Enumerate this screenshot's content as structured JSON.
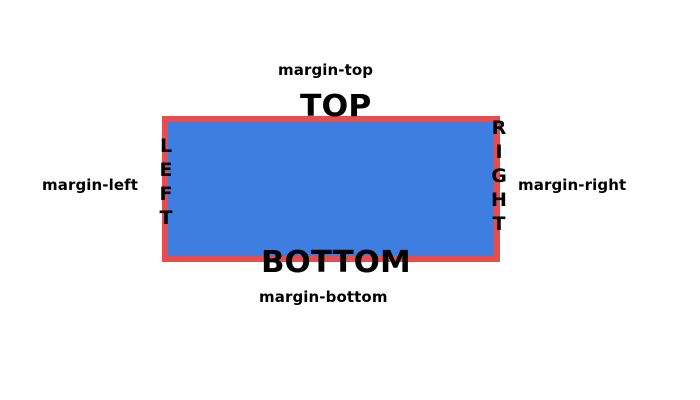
{
  "diagram": {
    "box": {
      "fill_color": "#3d7ee0",
      "border_color": "#e84d4d"
    },
    "labels": {
      "margin_top": "margin-top",
      "margin_left": "margin-left",
      "margin_right": "margin-right",
      "margin_bottom": "margin-bottom",
      "top": "TOP",
      "bottom": "BOTTOM",
      "left_letters": [
        "L",
        "E",
        "F",
        "T"
      ],
      "right_letters": [
        "R",
        "I",
        "G",
        "H",
        "T"
      ]
    }
  }
}
